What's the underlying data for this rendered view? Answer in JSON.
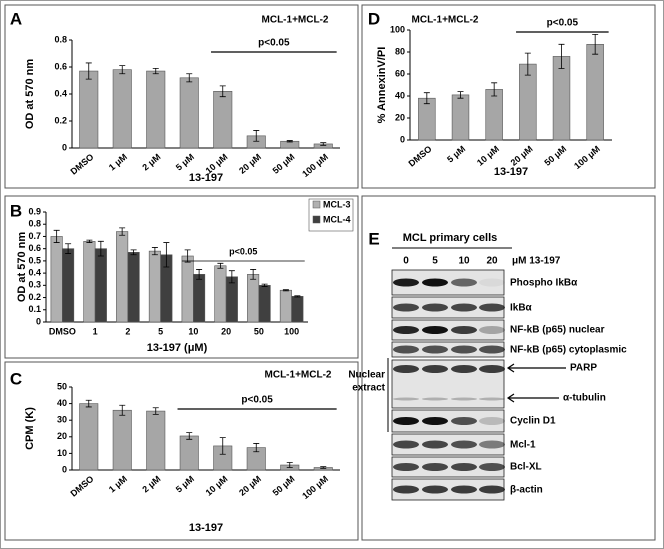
{
  "chart_data": [
    {
      "type": "bar",
      "panel_label": "A",
      "title": "MCL-1+MCL-2",
      "y_label": "OD at 570 nm",
      "x_label": "13-197",
      "categories": [
        "DMSO",
        "1 μM",
        "2 μM",
        "5 μM",
        "10 μM",
        "20 μM",
        "50 μM",
        "100 μM"
      ],
      "values": [
        0.57,
        0.58,
        0.57,
        0.52,
        0.42,
        0.09,
        0.05,
        0.03
      ],
      "errors": [
        0.06,
        0.03,
        0.02,
        0.03,
        0.04,
        0.04,
        0.005,
        0.01
      ],
      "color": "#a6a6a6",
      "ylim": [
        0,
        0.8
      ],
      "yticks": [
        0,
        0.2,
        0.4,
        0.6,
        0.8
      ],
      "annotation": "p<0.05"
    },
    {
      "type": "bar",
      "panel_label": "B",
      "y_label": "OD at 570 nm",
      "x_label": "13-197 (μM)",
      "categories": [
        "DMSO",
        "1",
        "2",
        "5",
        "10",
        "20",
        "50",
        "100"
      ],
      "series": [
        {
          "name": "MCL-3",
          "color": "#b0b0b0",
          "values": [
            0.7,
            0.66,
            0.74,
            0.58,
            0.54,
            0.46,
            0.39,
            0.26
          ],
          "errors": [
            0.05,
            0.01,
            0.03,
            0.03,
            0.05,
            0.02,
            0.04,
            0.005
          ]
        },
        {
          "name": "MCL-4",
          "color": "#404040",
          "values": [
            0.6,
            0.6,
            0.57,
            0.55,
            0.39,
            0.37,
            0.3,
            0.21
          ],
          "errors": [
            0.04,
            0.06,
            0.02,
            0.1,
            0.04,
            0.05,
            0.01,
            0.005
          ]
        }
      ],
      "ylim": [
        0,
        0.9
      ],
      "yticks": [
        0,
        0.1,
        0.2,
        0.3,
        0.4,
        0.5,
        0.6,
        0.7,
        0.8,
        0.9
      ],
      "annotation": "p<0.05",
      "legend": "top-right"
    },
    {
      "type": "bar",
      "panel_label": "C",
      "title": "MCL-1+MCL-2",
      "y_label": "CPM (K)",
      "x_label": "13-197",
      "categories": [
        "DMSO",
        "1 μM",
        "2 μM",
        "5 μM",
        "10 μM",
        "20 μM",
        "50 μM",
        "100 μM"
      ],
      "values": [
        40,
        36,
        35.5,
        20.5,
        14.5,
        13.5,
        3,
        1.5
      ],
      "errors": [
        2,
        3,
        2,
        2,
        5,
        2.5,
        1.5,
        0.5
      ],
      "color": "#a6a6a6",
      "ylim": [
        0,
        50
      ],
      "yticks": [
        0,
        10,
        20,
        30,
        40,
        50
      ],
      "annotation": "p<0.05"
    },
    {
      "type": "bar",
      "panel_label": "D",
      "title": "MCL-1+MCL-2",
      "y_label": "% AnnexinV/PI",
      "x_label": "13-197",
      "categories": [
        "DMSO",
        "5 μM",
        "10 μM",
        "20 μM",
        "50 μM",
        "100 μM"
      ],
      "values": [
        38,
        41,
        46,
        69,
        76,
        87
      ],
      "errors": [
        5,
        3,
        6,
        10,
        11,
        9
      ],
      "color": "#a6a6a6",
      "ylim": [
        0,
        100
      ],
      "yticks": [
        0,
        20,
        40,
        60,
        80,
        100
      ],
      "annotation": "p<0.05"
    }
  ],
  "blot": {
    "panel_label": "E",
    "header": "MCL primary cells",
    "lanes": [
      "0",
      "5",
      "10",
      "20"
    ],
    "unit": "μM 13-197",
    "rows": [
      "Phospho IkBα",
      "IkBα",
      "NF-kB (p65) nuclear",
      "NF-kB (p65) cytoplasmic",
      "PARP",
      "α-tubulin",
      "Cyclin D1",
      "Mcl-1",
      "Bcl-XL",
      "β-actin"
    ],
    "group_label": [
      "Nuclear",
      "extract"
    ]
  }
}
